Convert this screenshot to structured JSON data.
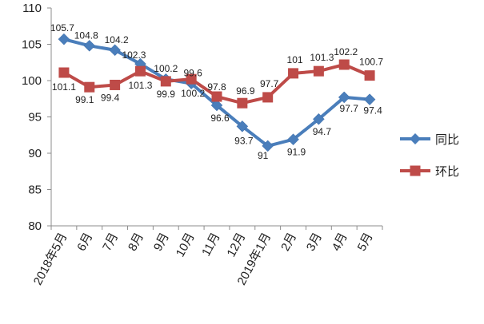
{
  "chart_data": {
    "type": "line",
    "categories": [
      "2018年5月",
      "6月",
      "7月",
      "8月",
      "9月",
      "10月",
      "11月",
      "12月",
      "2019年1月",
      "2月",
      "3月",
      "4月",
      "5月"
    ],
    "series": [
      {
        "name": "同比",
        "color": "#4a7ebb",
        "marker": "diamond",
        "values": [
          105.7,
          104.8,
          104.2,
          102.3,
          100.2,
          99.6,
          96.6,
          93.7,
          91,
          91.9,
          94.7,
          97.7,
          97.4
        ],
        "labels": [
          "105.7",
          "104.8",
          "104.2",
          "102.3",
          "100.2",
          "99.6",
          "96.6",
          "93.7",
          "91",
          "91.9",
          "94.7",
          "97.7",
          "97.4"
        ]
      },
      {
        "name": "环比",
        "color": "#be4b48",
        "marker": "square",
        "values": [
          101.1,
          99.1,
          99.4,
          101.3,
          99.9,
          100.2,
          97.8,
          96.9,
          97.7,
          101,
          101.3,
          102.2,
          100.7
        ],
        "labels": [
          "101.1",
          "99.1",
          "99.4",
          "101.3",
          "99.9",
          "100.2",
          "97.8",
          "96.9",
          "97.7",
          "101",
          "101.3",
          "102.2",
          "100.7"
        ]
      }
    ],
    "ylim": [
      80,
      110
    ],
    "yticks": [
      "80",
      "85",
      "90",
      "95",
      "100",
      "105",
      "110"
    ],
    "grid": false,
    "legend": "right"
  }
}
